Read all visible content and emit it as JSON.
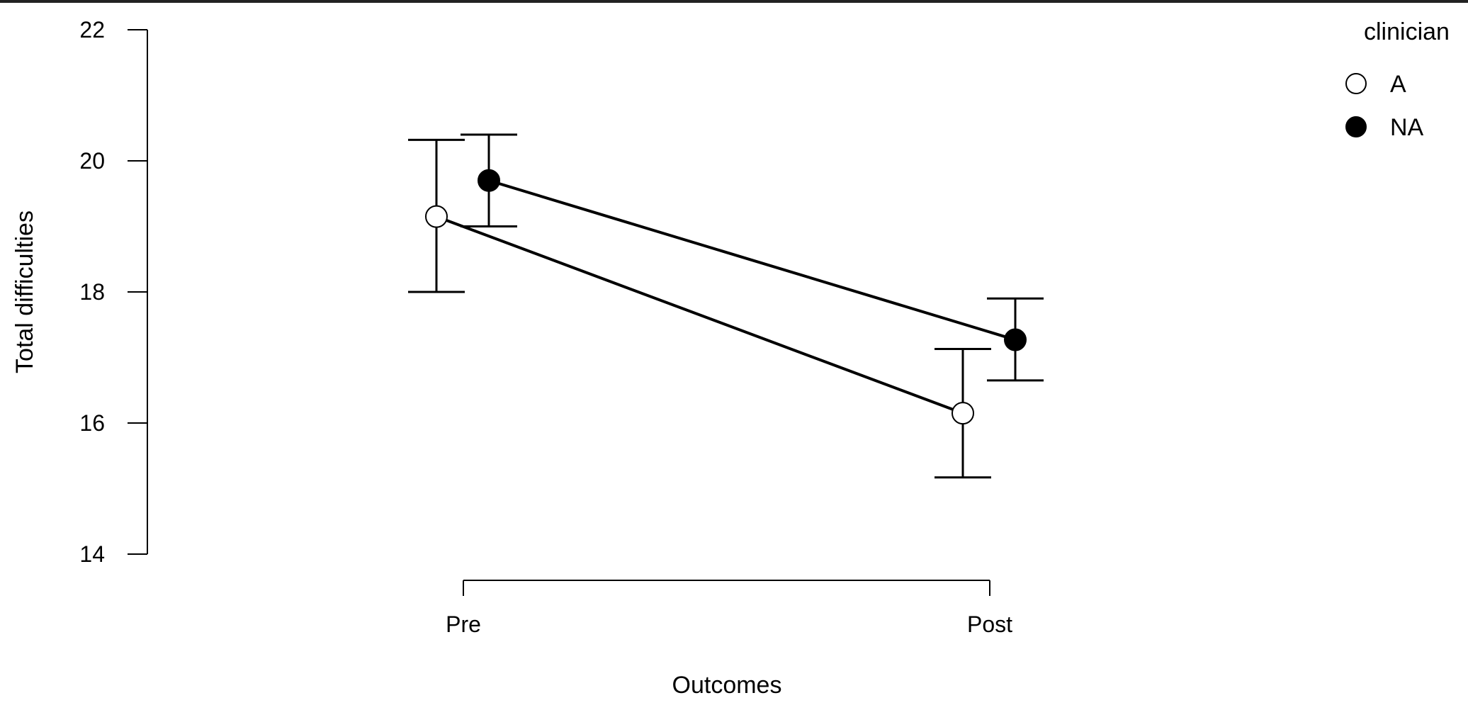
{
  "chart_data": {
    "type": "line",
    "title": "",
    "xlabel": "Outcomes",
    "ylabel": "Total difficulties",
    "categories": [
      "Pre",
      "Post"
    ],
    "ylim": [
      14,
      22
    ],
    "yticks": [
      14,
      16,
      18,
      20,
      22
    ],
    "grid": false,
    "legend": {
      "title": "clinician",
      "placement": "top-right"
    },
    "series": [
      {
        "name": "A",
        "marker": "open-circle",
        "fill": "#ffffff",
        "values": [
          19.15,
          16.15
        ],
        "lower": [
          18.0,
          15.17
        ],
        "upper": [
          20.32,
          17.13
        ]
      },
      {
        "name": "NA",
        "marker": "filled-circle",
        "fill": "#000000",
        "values": [
          19.7,
          17.27
        ],
        "lower": [
          19.0,
          16.65
        ],
        "upper": [
          20.4,
          17.9
        ]
      }
    ]
  }
}
